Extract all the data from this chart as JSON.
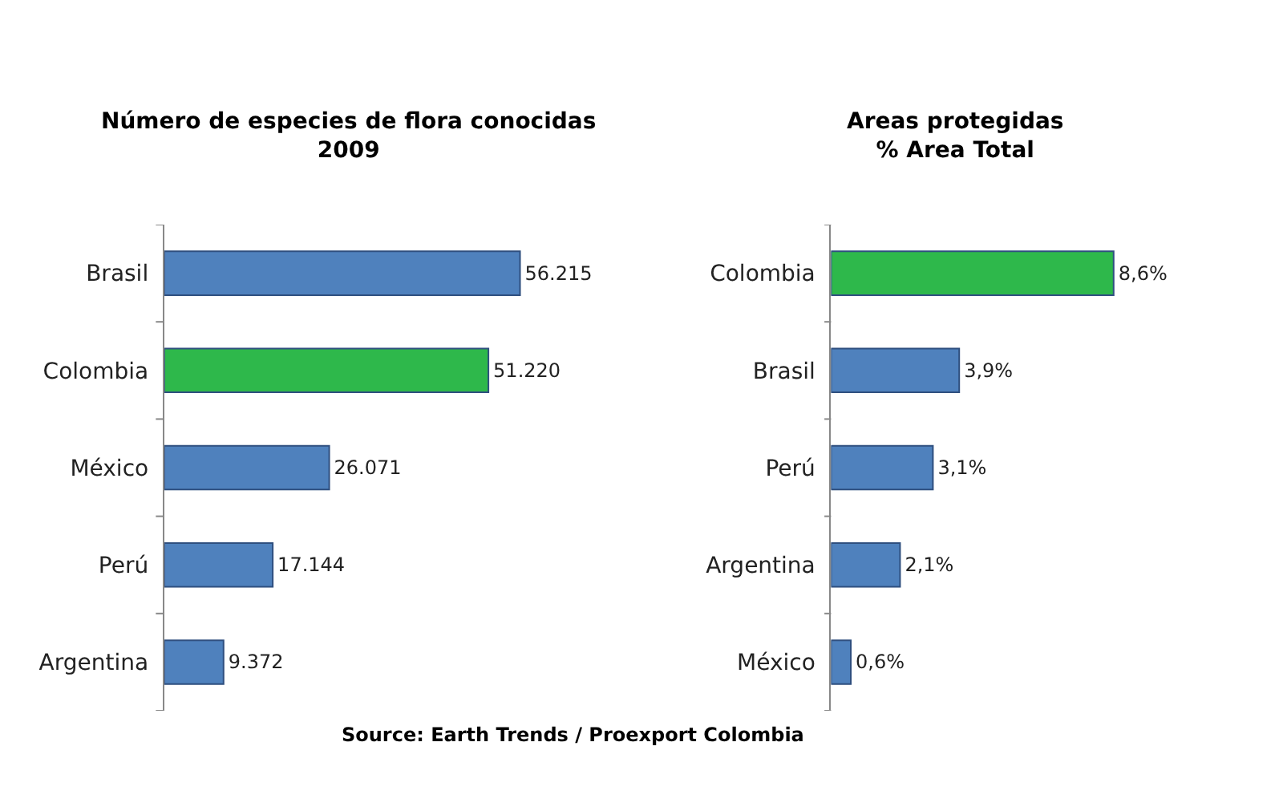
{
  "chart_data": [
    {
      "type": "bar",
      "orientation": "horizontal",
      "title": "Número de especies de flora conocidas\n2009",
      "categories": [
        "Brasil",
        "Colombia",
        "México",
        "Perú",
        "Argentina"
      ],
      "values": [
        56215,
        51220,
        26071,
        17144,
        9372
      ],
      "colors": [
        "#4f81bd",
        "#2eb84b",
        "#4f81bd",
        "#4f81bd",
        "#4f81bd"
      ],
      "value_labels": [
        "56.215",
        "51.220",
        "26.071",
        "17.144",
        "9.372"
      ],
      "annotations": [
        "Source: Earth Trends / Proexport Colombia"
      ]
    },
    {
      "type": "bar",
      "orientation": "horizontal",
      "title": "Areas protegidas\n% Area Total",
      "categories": [
        "Colombia",
        "Brasil",
        "Perú",
        "Argentina",
        "México"
      ],
      "values": [
        8.6,
        3.9,
        3.1,
        2.1,
        0.6
      ],
      "colors": [
        "#2eb84b",
        "#4f81bd",
        "#4f81bd",
        "#4f81bd",
        "#4f81bd"
      ],
      "value_labels": [
        "8,6%",
        "3,9%",
        "3,1%",
        "2,1%",
        "0,6%"
      ]
    }
  ]
}
